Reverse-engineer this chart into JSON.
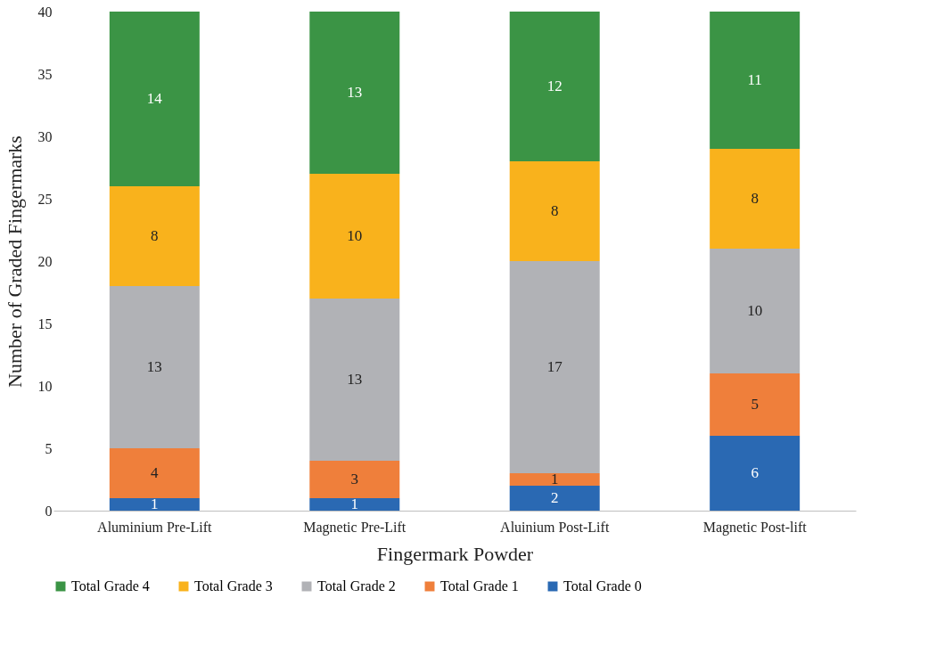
{
  "chart_data": {
    "type": "bar",
    "stacked": true,
    "xlabel": "Fingermark Powder",
    "ylabel": "Number of Graded Fingermarks",
    "categories": [
      "Aluminium Pre-Lift",
      "Magnetic Pre-Lift",
      "Aluinium Post-Lift",
      "Magnetic Post-lift"
    ],
    "series": [
      {
        "name": "Total Grade 0",
        "color": "#2a69b3",
        "values": [
          1,
          1,
          2,
          6
        ]
      },
      {
        "name": "Total Grade 1",
        "color": "#ef7f3b",
        "values": [
          4,
          3,
          1,
          5
        ]
      },
      {
        "name": "Total Grade 2",
        "color": "#b1b2b6",
        "values": [
          13,
          13,
          17,
          10
        ]
      },
      {
        "name": "Total Grade 3",
        "color": "#f9b21c",
        "values": [
          8,
          10,
          8,
          8
        ]
      },
      {
        "name": "Total Grade 4",
        "color": "#3b9445",
        "values": [
          14,
          13,
          12,
          11
        ]
      }
    ],
    "ylim": [
      0,
      40
    ],
    "yticks": [
      0,
      5,
      10,
      15,
      20,
      25,
      30,
      35,
      40
    ],
    "data_labels": true,
    "grid": false,
    "legend": "bottom"
  }
}
